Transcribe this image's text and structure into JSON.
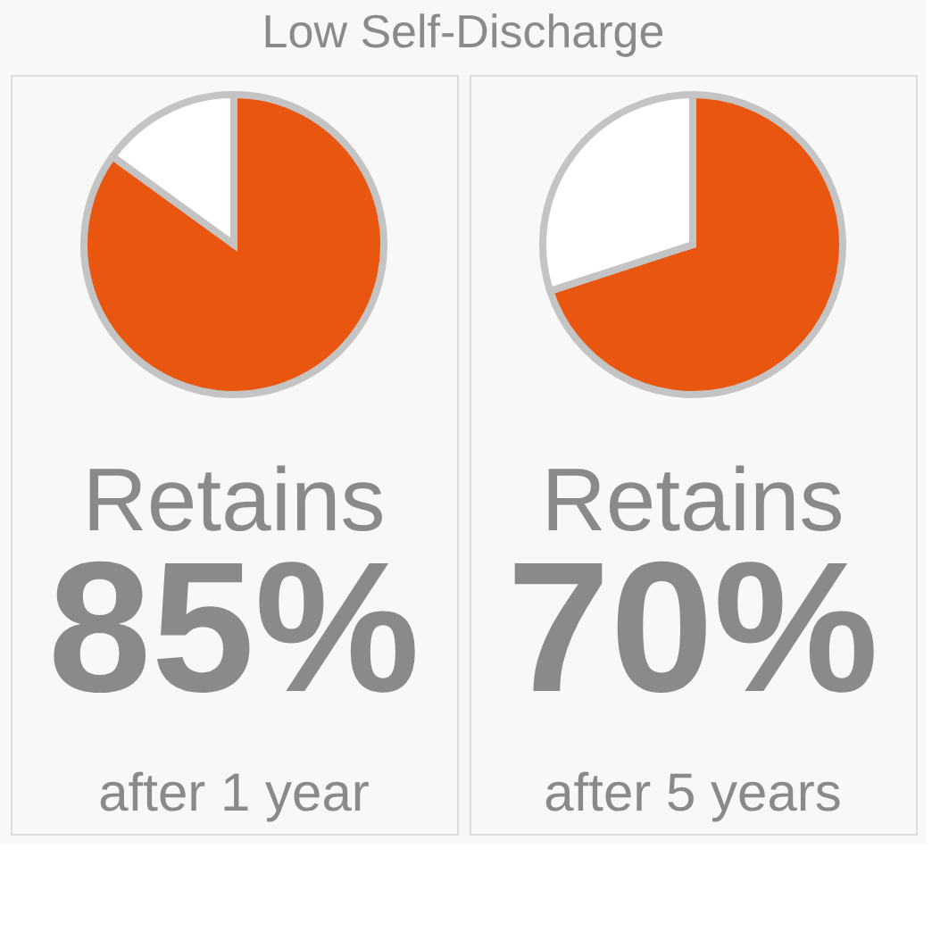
{
  "chart_data": [
    {
      "type": "pie",
      "title": "Low Self-Discharge",
      "categories": [
        null,
        null
      ],
      "values": [
        85,
        15
      ],
      "colors": [
        "#e8560f",
        "#ffffff"
      ],
      "annotations": [
        "Retains",
        "85%",
        "after 1 year"
      ]
    },
    {
      "type": "pie",
      "categories": [
        null,
        null
      ],
      "values": [
        70,
        30
      ],
      "colors": [
        "#e8560f",
        "#ffffff"
      ],
      "annotations": [
        "Retains",
        "70%",
        "after 5 years"
      ]
    }
  ]
}
